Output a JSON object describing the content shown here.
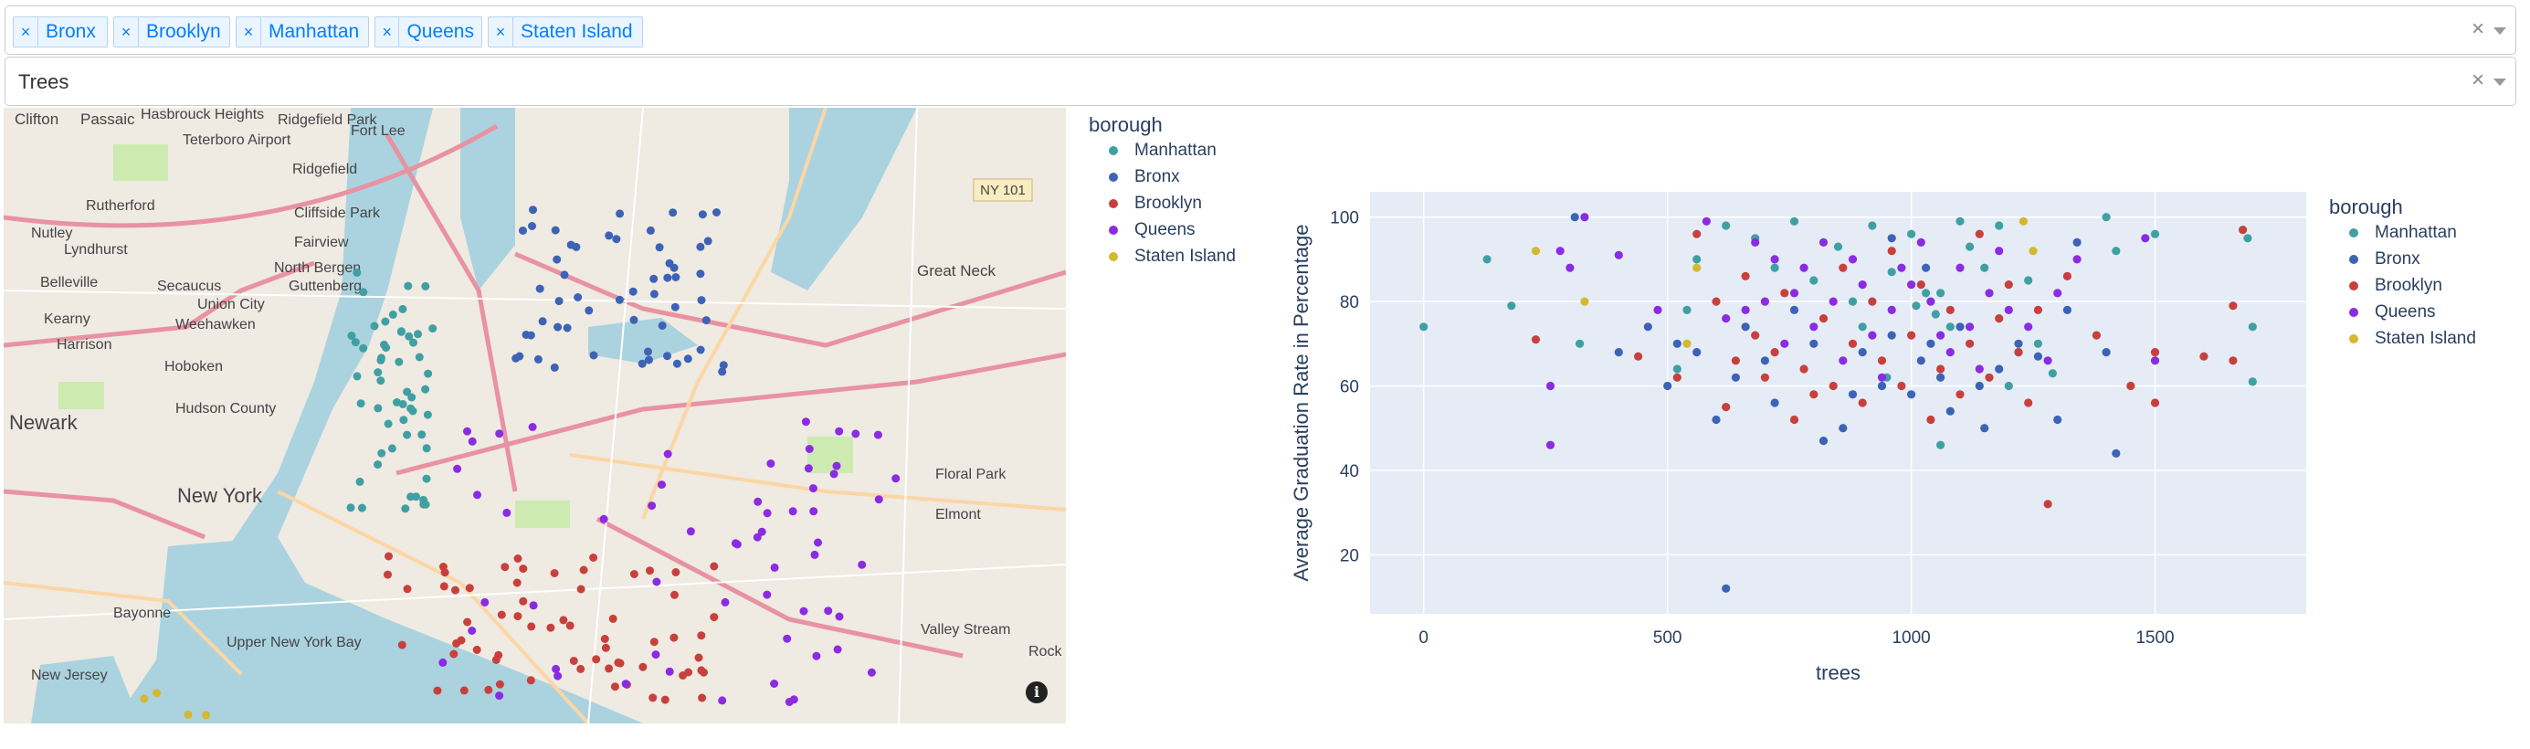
{
  "filters": {
    "borough_tags": [
      "Bronx",
      "Brooklyn",
      "Manhattan",
      "Queens",
      "Staten Island"
    ],
    "tag_remove_symbol": "×",
    "clear_symbol": "×",
    "metric_value": "Trees"
  },
  "map": {
    "labels": [
      {
        "text": "Clifton"
      },
      {
        "text": "Passaic"
      },
      {
        "text": "Hasbrouck Heights"
      },
      {
        "text": "Ridgefield Park"
      },
      {
        "text": "Teterboro Airport"
      },
      {
        "text": "Fort Lee"
      },
      {
        "text": "Ridgefield"
      },
      {
        "text": "Nutley"
      },
      {
        "text": "Rutherford"
      },
      {
        "text": "Cliffside Park"
      },
      {
        "text": "Lyndhurst"
      },
      {
        "text": "Fairview"
      },
      {
        "text": "North Bergen"
      },
      {
        "text": "Belleville"
      },
      {
        "text": "Secaucus"
      },
      {
        "text": "Guttenberg"
      },
      {
        "text": "Union City"
      },
      {
        "text": "Weehawken"
      },
      {
        "text": "Kearny"
      },
      {
        "text": "Harrison"
      },
      {
        "text": "Hoboken"
      },
      {
        "text": "Newark"
      },
      {
        "text": "Hudson County"
      },
      {
        "text": "New York"
      },
      {
        "text": "Great Neck"
      },
      {
        "text": "Floral Park"
      },
      {
        "text": "Elmont"
      },
      {
        "text": "Bayonne"
      },
      {
        "text": "Upper New York Bay"
      },
      {
        "text": "Valley Stream"
      },
      {
        "text": "New Jersey"
      },
      {
        "text": "Rock"
      },
      {
        "text": "NY 101"
      }
    ],
    "info_symbol": "i",
    "legend": {
      "title": "borough",
      "items": [
        {
          "label": "Manhattan",
          "color": "#3fa0a3"
        },
        {
          "label": "Bronx",
          "color": "#3c63b4"
        },
        {
          "label": "Brooklyn",
          "color": "#c8403c"
        },
        {
          "label": "Queens",
          "color": "#8b2be2"
        },
        {
          "label": "Staten Island",
          "color": "#d4b830"
        }
      ]
    }
  },
  "scatter": {
    "legend": {
      "title": "borough",
      "items": [
        {
          "label": "Manhattan",
          "color": "#3fa0a3"
        },
        {
          "label": "Bronx",
          "color": "#3c63b4"
        },
        {
          "label": "Brooklyn",
          "color": "#c8403c"
        },
        {
          "label": "Queens",
          "color": "#8b2be2"
        },
        {
          "label": "Staten Island",
          "color": "#d4b830"
        }
      ]
    }
  },
  "chart_data": {
    "type": "scatter",
    "title": "",
    "xlabel": "trees",
    "ylabel": "Average Graduation Rate in Percentage",
    "xlim": [
      -110,
      1810
    ],
    "ylim": [
      6,
      106
    ],
    "xticks": [
      0,
      500,
      1000,
      1500
    ],
    "yticks": [
      20,
      40,
      60,
      80,
      100
    ],
    "grid": true,
    "legend_position": "right",
    "series": [
      {
        "name": "Manhattan",
        "color": "#3fa0a3",
        "points": [
          [
            0,
            74
          ],
          [
            130,
            90
          ],
          [
            180,
            79
          ],
          [
            320,
            70
          ],
          [
            520,
            64
          ],
          [
            540,
            78
          ],
          [
            560,
            90
          ],
          [
            620,
            98
          ],
          [
            680,
            95
          ],
          [
            720,
            88
          ],
          [
            760,
            99
          ],
          [
            800,
            85
          ],
          [
            850,
            93
          ],
          [
            880,
            80
          ],
          [
            920,
            98
          ],
          [
            960,
            87
          ],
          [
            1000,
            96
          ],
          [
            1010,
            79
          ],
          [
            1030,
            82
          ],
          [
            1050,
            77
          ],
          [
            1060,
            82
          ],
          [
            1080,
            74
          ],
          [
            1120,
            93
          ],
          [
            1150,
            88
          ],
          [
            1200,
            60
          ],
          [
            1220,
            68
          ],
          [
            1240,
            85
          ],
          [
            1260,
            70
          ],
          [
            1290,
            63
          ],
          [
            1400,
            100
          ],
          [
            1420,
            92
          ],
          [
            1500,
            96
          ],
          [
            1690,
            95
          ],
          [
            1700,
            74
          ],
          [
            1700,
            61
          ],
          [
            1060,
            46
          ],
          [
            950,
            62
          ],
          [
            900,
            74
          ],
          [
            1100,
            99
          ],
          [
            1180,
            98
          ]
        ]
      },
      {
        "name": "Bronx",
        "color": "#3c63b4",
        "points": [
          [
            310,
            100
          ],
          [
            400,
            68
          ],
          [
            460,
            74
          ],
          [
            500,
            60
          ],
          [
            520,
            70
          ],
          [
            560,
            68
          ],
          [
            600,
            52
          ],
          [
            620,
            12
          ],
          [
            640,
            62
          ],
          [
            660,
            74
          ],
          [
            700,
            66
          ],
          [
            720,
            56
          ],
          [
            760,
            78
          ],
          [
            800,
            70
          ],
          [
            820,
            47
          ],
          [
            860,
            50
          ],
          [
            900,
            68
          ],
          [
            940,
            60
          ],
          [
            960,
            72
          ],
          [
            1000,
            58
          ],
          [
            1020,
            66
          ],
          [
            1040,
            70
          ],
          [
            1060,
            62
          ],
          [
            1080,
            54
          ],
          [
            1100,
            74
          ],
          [
            1140,
            60
          ],
          [
            1180,
            64
          ],
          [
            1220,
            70
          ],
          [
            1260,
            67
          ],
          [
            1300,
            52
          ],
          [
            1320,
            78
          ],
          [
            1340,
            94
          ],
          [
            1400,
            68
          ],
          [
            1420,
            44
          ],
          [
            1030,
            88
          ],
          [
            960,
            95
          ],
          [
            880,
            58
          ],
          [
            1150,
            50
          ]
        ]
      },
      {
        "name": "Brooklyn",
        "color": "#c8403c",
        "points": [
          [
            230,
            71
          ],
          [
            440,
            67
          ],
          [
            520,
            62
          ],
          [
            560,
            96
          ],
          [
            600,
            80
          ],
          [
            620,
            55
          ],
          [
            640,
            66
          ],
          [
            660,
            86
          ],
          [
            680,
            72
          ],
          [
            700,
            62
          ],
          [
            720,
            68
          ],
          [
            740,
            82
          ],
          [
            760,
            52
          ],
          [
            780,
            64
          ],
          [
            800,
            58
          ],
          [
            820,
            76
          ],
          [
            840,
            60
          ],
          [
            860,
            88
          ],
          [
            880,
            70
          ],
          [
            900,
            56
          ],
          [
            920,
            80
          ],
          [
            940,
            66
          ],
          [
            960,
            92
          ],
          [
            980,
            60
          ],
          [
            1000,
            72
          ],
          [
            1020,
            84
          ],
          [
            1040,
            52
          ],
          [
            1060,
            64
          ],
          [
            1080,
            78
          ],
          [
            1100,
            58
          ],
          [
            1120,
            70
          ],
          [
            1140,
            96
          ],
          [
            1160,
            62
          ],
          [
            1180,
            76
          ],
          [
            1200,
            84
          ],
          [
            1220,
            68
          ],
          [
            1240,
            56
          ],
          [
            1260,
            78
          ],
          [
            1280,
            32
          ],
          [
            1320,
            86
          ],
          [
            1380,
            72
          ],
          [
            1450,
            60
          ],
          [
            1500,
            68
          ],
          [
            1500,
            56
          ],
          [
            1600,
            67
          ],
          [
            1660,
            66
          ],
          [
            1660,
            79
          ],
          [
            1680,
            97
          ]
        ]
      },
      {
        "name": "Queens",
        "color": "#8b2be2",
        "points": [
          [
            260,
            60
          ],
          [
            260,
            46
          ],
          [
            280,
            92
          ],
          [
            300,
            88
          ],
          [
            330,
            100
          ],
          [
            400,
            91
          ],
          [
            480,
            78
          ],
          [
            580,
            99
          ],
          [
            620,
            76
          ],
          [
            660,
            78
          ],
          [
            680,
            94
          ],
          [
            700,
            80
          ],
          [
            720,
            90
          ],
          [
            740,
            70
          ],
          [
            760,
            82
          ],
          [
            780,
            88
          ],
          [
            800,
            74
          ],
          [
            820,
            94
          ],
          [
            840,
            80
          ],
          [
            860,
            66
          ],
          [
            880,
            90
          ],
          [
            900,
            84
          ],
          [
            920,
            72
          ],
          [
            940,
            62
          ],
          [
            960,
            78
          ],
          [
            980,
            88
          ],
          [
            1000,
            84
          ],
          [
            1020,
            94
          ],
          [
            1040,
            80
          ],
          [
            1060,
            72
          ],
          [
            1080,
            68
          ],
          [
            1100,
            88
          ],
          [
            1120,
            74
          ],
          [
            1140,
            64
          ],
          [
            1160,
            82
          ],
          [
            1180,
            92
          ],
          [
            1200,
            78
          ],
          [
            1240,
            74
          ],
          [
            1280,
            66
          ],
          [
            1300,
            82
          ],
          [
            1340,
            90
          ],
          [
            1480,
            95
          ],
          [
            1500,
            66
          ]
        ]
      },
      {
        "name": "Staten Island",
        "color": "#d4b830",
        "points": [
          [
            230,
            92
          ],
          [
            330,
            80
          ],
          [
            540,
            70
          ],
          [
            560,
            88
          ],
          [
            1230,
            99
          ],
          [
            1250,
            92
          ]
        ]
      }
    ]
  }
}
